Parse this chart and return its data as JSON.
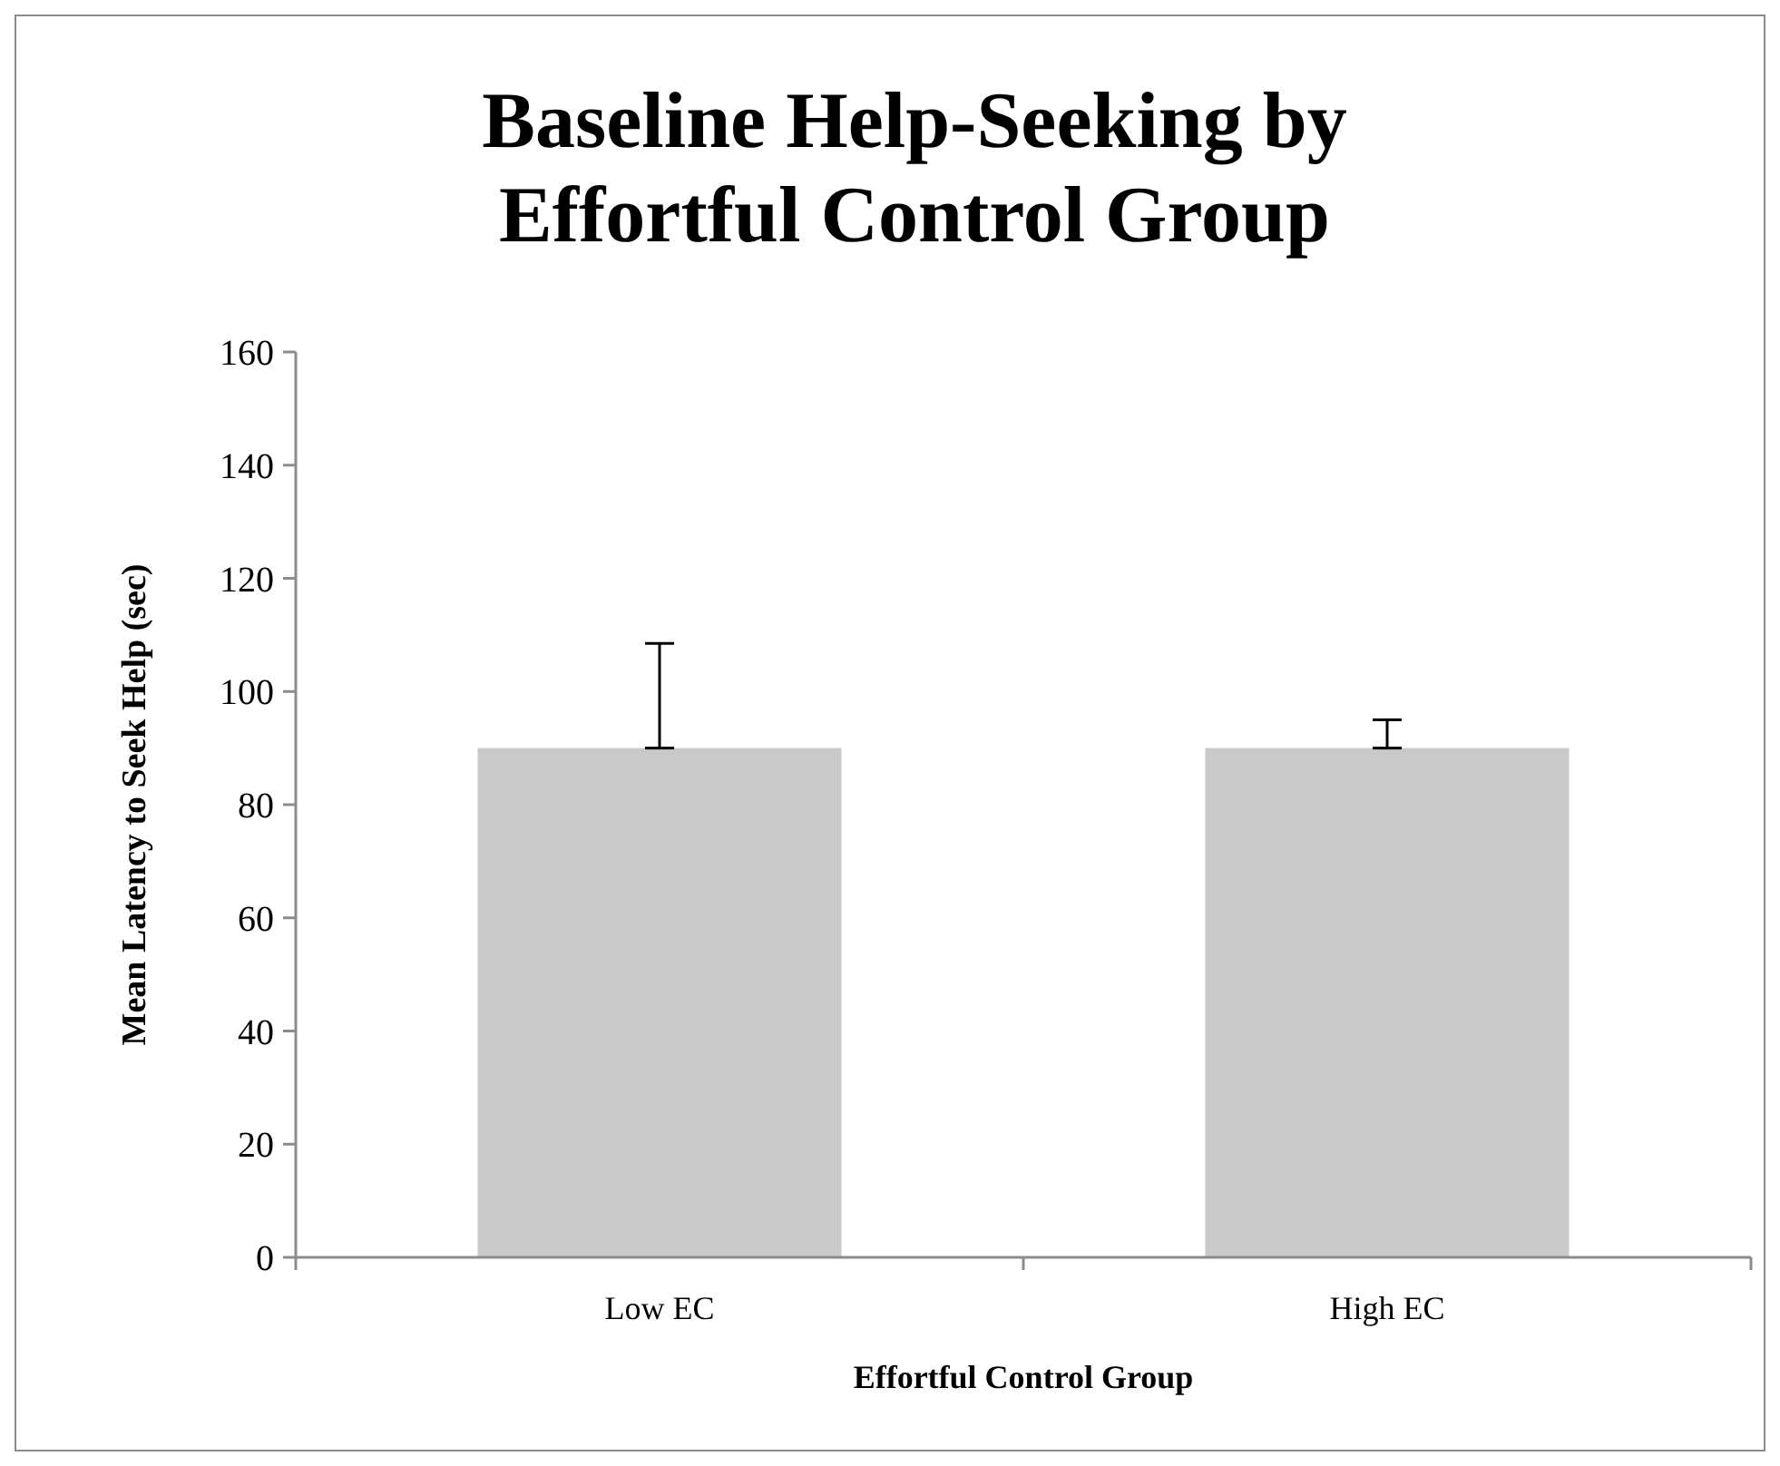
{
  "chart_data": {
    "type": "bar",
    "title": "Baseline Help-Seeking by Effortful Control Group",
    "xlabel": "Effortful Control Group",
    "ylabel": "Mean Latency to Seek Help (sec)",
    "categories": [
      "Low EC",
      "High EC"
    ],
    "values": [
      90,
      90
    ],
    "color": "#c9c9c9",
    "errors": [
      [
        90,
        108.5
      ],
      [
        90,
        95
      ]
    ],
    "ylim": [
      0,
      160
    ],
    "yticks": [
      0,
      20,
      40,
      60,
      80,
      100,
      120,
      140,
      160
    ],
    "grid": false
  }
}
